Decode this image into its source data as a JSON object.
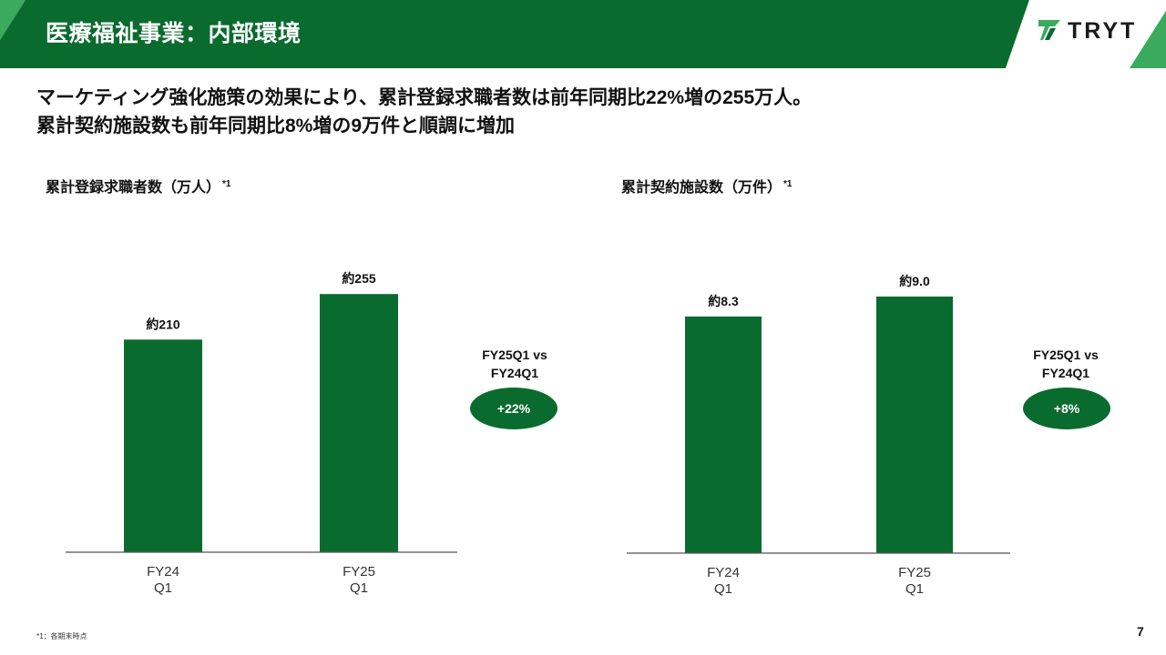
{
  "header": {
    "title": "医療福祉事業：内部環境",
    "brand_color": "#0a6b2e",
    "accent_color": "#3aaa5c"
  },
  "logo": {
    "text": "TRYT",
    "icon": "tryt-arrow-logo-icon"
  },
  "summary": {
    "line1": "マーケティング強化施策の効果により、累計登録求職者数は前年同期比22%増の255万人。",
    "line2": "累計契約施設数も前年同期比8%増の9万件と順調に増加"
  },
  "chart_data": [
    {
      "type": "bar",
      "title": "累計登録求職者数（万人）",
      "title_note": "*1",
      "categories": [
        "FY24\nQ1",
        "FY25\nQ1"
      ],
      "values": [
        210,
        255
      ],
      "data_labels": [
        "約210",
        "約255"
      ],
      "ylim": [
        0,
        310
      ],
      "color": "#0a6b2e",
      "comparison": {
        "label_line1": "FY25Q1 vs",
        "label_line2": "FY24Q1",
        "change": "+22%"
      }
    },
    {
      "type": "bar",
      "title": "累計契約施設数（万件）",
      "title_note": "*1",
      "categories": [
        "FY24\nQ1",
        "FY25\nQ1"
      ],
      "values": [
        8.3,
        9.0
      ],
      "data_labels": [
        "約8.3",
        "約9.0"
      ],
      "ylim": [
        0,
        10.85
      ],
      "color": "#0a6b2e",
      "comparison": {
        "label_line1": "FY25Q1 vs",
        "label_line2": "FY24Q1",
        "change": "+8%"
      }
    }
  ],
  "footnote": "*1：各期末時点",
  "page_number": "7"
}
